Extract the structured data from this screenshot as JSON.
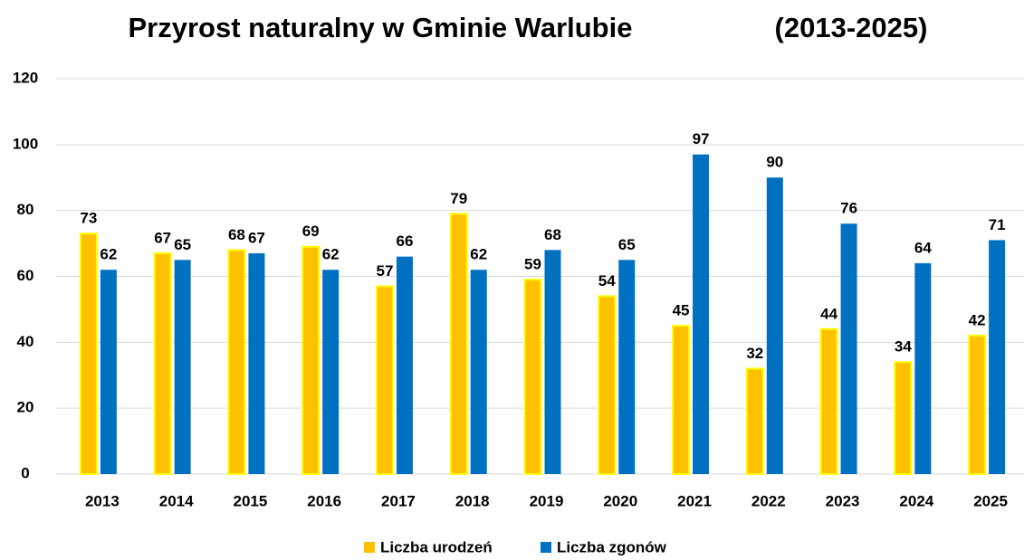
{
  "chart_data": {
    "type": "bar",
    "title": [
      "Przyrost naturalny w Gminie Warlubie",
      "(2013-2025)"
    ],
    "categories": [
      "2013",
      "2014",
      "2015",
      "2016",
      "2017",
      "2018",
      "2019",
      "2020",
      "2021",
      "2022",
      "2023",
      "2024",
      "2025"
    ],
    "series": [
      {
        "name": "Liczba urodzeń",
        "color": "#ffc000",
        "values": [
          73,
          67,
          68,
          69,
          57,
          79,
          59,
          54,
          45,
          32,
          44,
          34,
          42
        ]
      },
      {
        "name": "Liczba zgonów",
        "color": "#0070c0",
        "values": [
          62,
          65,
          67,
          62,
          66,
          62,
          68,
          65,
          97,
          90,
          76,
          64,
          71
        ]
      }
    ],
    "ylim": [
      0,
      120
    ],
    "yticks": [
      0,
      20,
      40,
      60,
      80,
      100,
      120
    ],
    "grid": true,
    "legend": "bottom"
  }
}
